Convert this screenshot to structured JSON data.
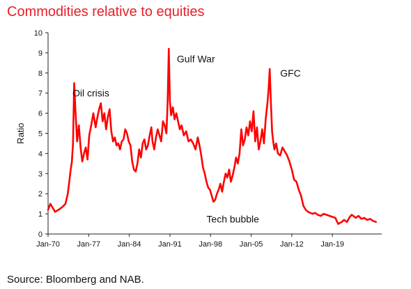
{
  "chart_data": {
    "type": "line",
    "title": "Commodities relative to equities",
    "xlabel": "",
    "ylabel": "Ratio",
    "ylim": [
      0,
      10
    ],
    "yticks": [
      0,
      1,
      2,
      3,
      4,
      5,
      6,
      7,
      8,
      9,
      10
    ],
    "xlim": [
      1970,
      2027.5
    ],
    "xticks": [
      {
        "value": 1970,
        "label": "Jan-70"
      },
      {
        "value": 1977,
        "label": "Jan-77"
      },
      {
        "value": 1984,
        "label": "Jan-84"
      },
      {
        "value": 1991,
        "label": "Jan-91"
      },
      {
        "value": 1998,
        "label": "Jan-98"
      },
      {
        "value": 2005,
        "label": "Jan-05"
      },
      {
        "value": 2012,
        "label": "Jan-12"
      },
      {
        "value": 2019,
        "label": "Jan-19"
      }
    ],
    "grid": false,
    "legend": "none",
    "line_color": "#ff0000",
    "annotations": [
      {
        "text": "Oil crisis",
        "x": 1974.2,
        "y": 7.0
      },
      {
        "text": "Gulf War",
        "x": 1992.2,
        "y": 8.7
      },
      {
        "text": "GFC",
        "x": 2010.0,
        "y": 8.0
      },
      {
        "text": "Tech bubble",
        "x": 1997.3,
        "y": 0.75
      }
    ],
    "series": [
      {
        "x": [
          1970.0,
          1970.4,
          1970.8,
          1971.2,
          1971.8,
          1972.5,
          1973.0,
          1973.4,
          1973.7,
          1973.9,
          1974.1,
          1974.3,
          1974.5,
          1974.7,
          1975.0,
          1975.3,
          1975.6,
          1975.9,
          1976.2,
          1976.5,
          1976.8,
          1977.1,
          1977.5,
          1977.8,
          1978.2,
          1978.5,
          1978.8,
          1979.1,
          1979.4,
          1979.7,
          1980.0,
          1980.3,
          1980.6,
          1980.9,
          1981.2,
          1981.5,
          1981.8,
          1982.1,
          1982.4,
          1982.7,
          1983.0,
          1983.3,
          1983.6,
          1983.9,
          1984.2,
          1984.5,
          1984.8,
          1985.1,
          1985.4,
          1985.7,
          1986.0,
          1986.3,
          1986.6,
          1986.9,
          1987.2,
          1987.5,
          1987.8,
          1988.0,
          1988.3,
          1988.6,
          1988.9,
          1989.2,
          1989.5,
          1989.8,
          1990.1,
          1990.4,
          1990.6,
          1990.8,
          1991.0,
          1991.2,
          1991.5,
          1991.8,
          1992.1,
          1992.4,
          1992.7,
          1993.0,
          1993.4,
          1993.8,
          1994.2,
          1994.6,
          1995.0,
          1995.4,
          1995.8,
          1996.1,
          1996.4,
          1996.7,
          1997.0,
          1997.3,
          1997.6,
          1997.9,
          1998.2,
          1998.5,
          1998.8,
          1999.1,
          1999.4,
          1999.7,
          2000.0,
          2000.3,
          2000.6,
          2000.9,
          2001.2,
          2001.5,
          2001.8,
          2002.1,
          2002.4,
          2002.7,
          2003.0,
          2003.3,
          2003.6,
          2003.9,
          2004.2,
          2004.5,
          2004.8,
          2005.1,
          2005.4,
          2005.7,
          2006.0,
          2006.3,
          2006.6,
          2006.9,
          2007.2,
          2007.5,
          2007.8,
          2008.0,
          2008.2,
          2008.4,
          2008.6,
          2008.8,
          2009.0,
          2009.3,
          2009.6,
          2010.0,
          2010.4,
          2010.8,
          2011.2,
          2011.6,
          2012.0,
          2012.4,
          2012.8,
          2013.2,
          2013.6,
          2014.0,
          2014.4,
          2014.8,
          2015.2,
          2015.6,
          2016.0,
          2016.5,
          2017.0,
          2017.5,
          2018.0,
          2018.5,
          2019.0,
          2019.5,
          2020.0,
          2020.3,
          2020.6,
          2021.0,
          2021.5,
          2022.0,
          2022.3,
          2022.6,
          2023.0,
          2023.5,
          2024.0,
          2024.5,
          2025.0,
          2025.5,
          2026.0,
          2026.5
        ],
        "values": [
          1.2,
          1.5,
          1.3,
          1.1,
          1.2,
          1.35,
          1.5,
          2.0,
          2.7,
          3.2,
          3.6,
          4.5,
          7.5,
          6.2,
          4.6,
          5.4,
          4.3,
          3.6,
          4.0,
          4.3,
          3.7,
          4.9,
          5.5,
          6.0,
          5.3,
          5.8,
          6.2,
          6.5,
          5.6,
          6.0,
          5.2,
          5.8,
          6.2,
          5.1,
          4.6,
          4.8,
          4.4,
          4.5,
          4.2,
          4.6,
          4.7,
          5.2,
          5.0,
          4.6,
          4.4,
          3.6,
          3.2,
          3.1,
          3.5,
          4.2,
          3.8,
          4.5,
          4.7,
          4.2,
          4.4,
          4.9,
          5.3,
          4.6,
          4.2,
          4.8,
          5.2,
          4.9,
          4.6,
          5.6,
          5.4,
          5.0,
          6.5,
          9.2,
          6.6,
          5.9,
          6.3,
          5.7,
          6.0,
          5.6,
          5.2,
          5.4,
          4.9,
          5.1,
          4.6,
          4.7,
          4.5,
          4.2,
          4.8,
          4.4,
          3.9,
          3.3,
          3.0,
          2.6,
          2.3,
          2.2,
          1.9,
          1.6,
          1.7,
          2.0,
          2.2,
          2.5,
          2.1,
          2.6,
          3.0,
          2.8,
          3.2,
          2.6,
          2.9,
          3.3,
          3.8,
          3.5,
          4.0,
          5.2,
          4.4,
          4.7,
          5.3,
          4.9,
          5.6,
          5.1,
          6.1,
          4.6,
          5.3,
          4.2,
          4.6,
          5.2,
          4.5,
          5.7,
          6.5,
          7.2,
          8.2,
          6.5,
          5.1,
          4.6,
          4.2,
          4.5,
          4.0,
          3.9,
          4.3,
          4.1,
          3.9,
          3.6,
          3.2,
          2.7,
          2.6,
          2.2,
          1.9,
          1.4,
          1.2,
          1.1,
          1.05,
          1.0,
          1.05,
          0.95,
          0.9,
          1.0,
          0.95,
          0.9,
          0.85,
          0.8,
          0.5,
          0.55,
          0.6,
          0.7,
          0.6,
          0.85,
          0.95,
          0.9,
          0.8,
          0.9,
          0.75,
          0.8,
          0.7,
          0.75,
          0.65,
          0.6
        ]
      }
    ]
  },
  "source_note": "Source: Bloomberg and NAB."
}
